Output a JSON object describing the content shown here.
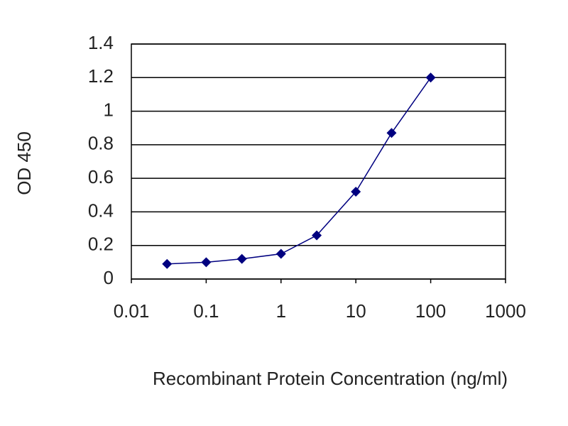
{
  "chart_data": {
    "type": "line",
    "x_label": "Recombinant Protein Concentration (ng/ml)",
    "y_label": "OD 450",
    "x": [
      0.03,
      0.1,
      0.3,
      1,
      3,
      10,
      30,
      100
    ],
    "values": [
      0.09,
      0.1,
      0.12,
      0.15,
      0.26,
      0.52,
      0.87,
      1.2
    ],
    "color": "#000080",
    "xscale": "log",
    "xlim": [
      0.01,
      1000
    ],
    "xticks": [
      0.01,
      0.1,
      1,
      10,
      100,
      1000
    ],
    "ylim": [
      0,
      1.4
    ],
    "yticks": [
      0,
      0.2,
      0.4,
      0.6,
      0.8,
      1,
      1.2,
      1.4
    ],
    "grid": true
  }
}
